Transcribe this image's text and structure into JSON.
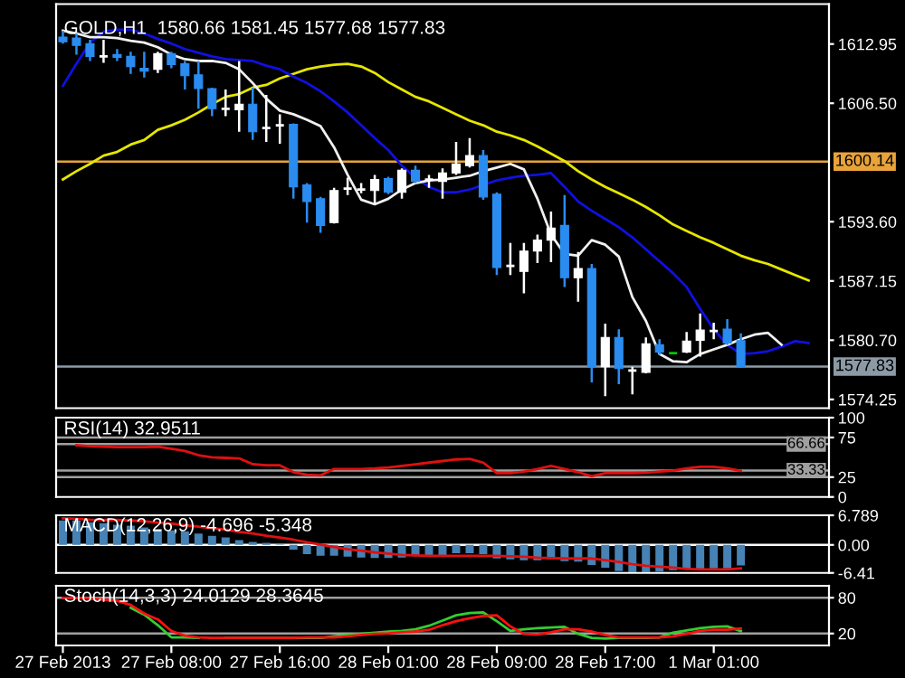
{
  "chart_data": [
    {
      "type": "candlestick",
      "title": "GOLD,H1  1580.66 1581.45 1577.68 1577.83",
      "ohlc": [
        [
          1613.7,
          1614.4,
          1613.0,
          1613.2
        ],
        [
          1613.6,
          1614.1,
          1611.8,
          1612.8
        ],
        [
          1613.0,
          1613.4,
          1611.1,
          1611.6
        ],
        [
          1611.6,
          1613.4,
          1610.9,
          1611.6
        ],
        [
          1611.8,
          1612.4,
          1611.1,
          1611.5
        ],
        [
          1611.6,
          1612.1,
          1609.7,
          1610.5
        ],
        [
          1610.3,
          1612.1,
          1609.3,
          1610.0
        ],
        [
          1610.2,
          1612.1,
          1609.8,
          1611.9
        ],
        [
          1611.9,
          1612.1,
          1610.3,
          1610.7
        ],
        [
          1610.8,
          1611.1,
          1608.0,
          1609.5
        ],
        [
          1609.6,
          1611.1,
          1605.9,
          1608.1
        ],
        [
          1608.1,
          1608.2,
          1605.1,
          1605.9
        ],
        [
          1605.9,
          1608.0,
          1605.1,
          1605.9
        ],
        [
          1605.8,
          1611.1,
          1603.4,
          1606.4
        ],
        [
          1606.4,
          1608.2,
          1602.5,
          1603.4
        ],
        [
          1603.8,
          1607.4,
          1602.3,
          1603.8
        ],
        [
          1604.1,
          1605.3,
          1602.1,
          1604.1
        ],
        [
          1604.2,
          1604.3,
          1596.1,
          1597.4
        ],
        [
          1597.6,
          1597.8,
          1593.5,
          1595.8
        ],
        [
          1596.1,
          1596.3,
          1592.4,
          1593.2
        ],
        [
          1593.5,
          1597.3,
          1593.4,
          1597.0
        ],
        [
          1597.2,
          1598.4,
          1596.5,
          1597.2
        ],
        [
          1597.1,
          1597.8,
          1596.7,
          1597.1
        ],
        [
          1597.0,
          1598.7,
          1595.6,
          1598.2
        ],
        [
          1598.3,
          1598.5,
          1596.6,
          1596.8
        ],
        [
          1596.8,
          1599.4,
          1596.1,
          1599.2
        ],
        [
          1599.2,
          1599.7,
          1597.8,
          1598.0
        ],
        [
          1598.2,
          1598.7,
          1597.3,
          1598.2
        ],
        [
          1598.0,
          1599.4,
          1596.1,
          1598.9
        ],
        [
          1598.9,
          1602.3,
          1598.7,
          1599.9
        ],
        [
          1599.7,
          1602.7,
          1599.5,
          1600.8
        ],
        [
          1600.8,
          1601.4,
          1596.0,
          1596.3
        ],
        [
          1596.6,
          1596.8,
          1587.8,
          1588.6
        ],
        [
          1588.8,
          1591.3,
          1587.8,
          1588.8
        ],
        [
          1588.2,
          1591.3,
          1585.8,
          1590.4
        ],
        [
          1590.4,
          1592.2,
          1589.1,
          1591.6
        ],
        [
          1591.6,
          1594.7,
          1589.2,
          1592.9
        ],
        [
          1593.2,
          1596.5,
          1586.5,
          1587.5
        ],
        [
          1587.5,
          1590.3,
          1584.9,
          1588.5
        ],
        [
          1588.5,
          1589.0,
          1576.1,
          1577.8
        ],
        [
          1577.8,
          1582.5,
          1574.6,
          1581.0
        ],
        [
          1581.0,
          1581.9,
          1575.9,
          1577.6
        ],
        [
          1577.4,
          1577.8,
          1574.8,
          1577.4
        ],
        [
          1577.2,
          1581.0,
          1577.1,
          1580.3
        ],
        [
          1580.2,
          1580.8,
          1579.1,
          1579.4
        ],
        [
          1579.3,
          1579.3,
          1579.3,
          1579.3
        ],
        [
          1579.4,
          1581.6,
          1579.3,
          1580.6
        ],
        [
          1580.7,
          1583.6,
          1578.9,
          1581.8
        ],
        [
          1581.7,
          1582.6,
          1580.8,
          1581.7
        ],
        [
          1581.9,
          1583.0,
          1580.2,
          1580.4
        ],
        [
          1580.66,
          1581.45,
          1577.68,
          1577.83
        ],
        null,
        null,
        null,
        null,
        null,
        null
      ],
      "colors": [
        "#2a8cf0",
        "#2a8cf0",
        "#2a8cf0",
        "#ffffff",
        "#2a8cf0",
        "#2a8cf0",
        "#2a8cf0",
        "#ffffff",
        "#2a8cf0",
        "#2a8cf0",
        "#2a8cf0",
        "#2a8cf0",
        "#ffffff",
        "#ffffff",
        "#2a8cf0",
        "#ffffff",
        "#ffffff",
        "#2a8cf0",
        "#2a8cf0",
        "#2a8cf0",
        "#ffffff",
        "#ffffff",
        "#ffffff",
        "#ffffff",
        "#2a8cf0",
        "#ffffff",
        "#2a8cf0",
        "#ffffff",
        "#ffffff",
        "#ffffff",
        "#ffffff",
        "#2a8cf0",
        "#2a8cf0",
        "#ffffff",
        "#ffffff",
        "#ffffff",
        "#ffffff",
        "#2a8cf0",
        "#ffffff",
        "#2a8cf0",
        "#ffffff",
        "#2a8cf0",
        "#ffffff",
        "#ffffff",
        "#2a8cf0",
        "#00c800",
        "#ffffff",
        "#ffffff",
        "#ffffff",
        "#2a8cf0",
        "#2a8cf0",
        null,
        null,
        null,
        null,
        null,
        null
      ],
      "series": [
        {
          "type": "line",
          "color": "#e6e600",
          "values": [
            1598.2,
            1599.1,
            1599.9,
            1600.8,
            1601.2,
            1602.0,
            1602.5,
            1603.6,
            1604.1,
            1604.7,
            1605.5,
            1606.4,
            1607.2,
            1607.5,
            1608.2,
            1608.5,
            1609.2,
            1609.7,
            1610.2,
            1610.5,
            1610.7,
            1610.8,
            1610.5,
            1609.8,
            1608.8,
            1608.0,
            1607.2,
            1606.7,
            1606.0,
            1605.3,
            1604.6,
            1604.1,
            1603.4,
            1603.0,
            1602.5,
            1601.8,
            1601.0,
            1600.2,
            1599.1,
            1598.2,
            1597.4,
            1596.7,
            1596.0,
            1595.2,
            1594.3,
            1593.3,
            1592.6,
            1591.9,
            1591.3,
            1590.6,
            1589.9,
            1589.4,
            1589.0,
            1588.4,
            1587.8,
            1587.2,
            null
          ]
        },
        {
          "type": "line",
          "color": "#1010e0",
          "values": [
            1608.4,
            1610.8,
            1613.1,
            1614.3,
            1614.5,
            1614.5,
            1614.1,
            1613.5,
            1613.0,
            1612.4,
            1612.0,
            1611.6,
            1611.3,
            1611.2,
            1611.1,
            1610.6,
            1610.2,
            1609.4,
            1608.7,
            1607.8,
            1606.7,
            1605.5,
            1604.1,
            1602.7,
            1601.4,
            1599.7,
            1598.4,
            1597.4,
            1596.8,
            1596.8,
            1597.1,
            1597.6,
            1598.1,
            1598.4,
            1598.6,
            1598.7,
            1598.9,
            1597.4,
            1595.8,
            1594.8,
            1593.9,
            1593.0,
            1591.9,
            1590.6,
            1589.3,
            1588.0,
            1586.5,
            1584.1,
            1581.9,
            1580.2,
            1579.2,
            1579.3,
            1579.5,
            1580.0,
            1580.6,
            1580.4,
            null
          ]
        },
        {
          "type": "line",
          "color": "#f0f0f0",
          "values": [
            1614.4,
            1614.1,
            1613.7,
            1613.7,
            1613.6,
            1613.3,
            1613.1,
            1612.6,
            1611.8,
            1611.3,
            1611.1,
            1611.1,
            1610.9,
            1610.2,
            1608.7,
            1607.0,
            1605.7,
            1605.3,
            1604.7,
            1604.0,
            1601.7,
            1598.7,
            1596.0,
            1595.5,
            1596.1,
            1597.1,
            1597.8,
            1598.1,
            1598.2,
            1598.4,
            1598.6,
            1599.1,
            1599.5,
            1599.9,
            1599.3,
            1596.1,
            1592.2,
            1590.1,
            1589.9,
            1591.6,
            1591.1,
            1589.8,
            1585.4,
            1582.8,
            1579.2,
            1578.4,
            1578.3,
            1579.2,
            1579.7,
            1580.2,
            1580.8,
            1581.3,
            1581.5,
            1580.2,
            null,
            null,
            null
          ]
        }
      ],
      "ylim": [
        1573.3,
        1617.3
      ],
      "yticks": [
        1612.95,
        {
          "value": 1606.5,
          "label": "1606.50"
        },
        {
          "value": 1593.6,
          "label": "1593.60"
        },
        1587.15,
        {
          "value": 1580.7,
          "label": "1580.70"
        },
        1574.25
      ],
      "ref_lines": [
        {
          "axis": "y",
          "value": 1600.14,
          "label": "1600.14",
          "color": "#e8a33a"
        },
        {
          "axis": "y",
          "value": 1577.83,
          "label": "1577.83",
          "color": "#8c9aa6"
        }
      ],
      "tick_labels": "y"
    },
    {
      "type": "line",
      "title": "RSI(14) 32.9511",
      "series": [
        {
          "color": "#e01010",
          "values": [
            null,
            65.3,
            64.0,
            63.3,
            62.7,
            62.7,
            62.7,
            63.3,
            60.7,
            58.0,
            52.7,
            50.0,
            49.3,
            48.7,
            41.3,
            40.0,
            40.0,
            31.3,
            28.0,
            27.3,
            35.3,
            35.3,
            35.3,
            36.0,
            37.3,
            39.3,
            41.3,
            43.3,
            45.3,
            47.3,
            48.0,
            43.3,
            30.0,
            30.0,
            32.0,
            35.3,
            39.3,
            35.3,
            31.3,
            26.0,
            30.0,
            30.0,
            30.0,
            30.7,
            32.0,
            33.3,
            36.0,
            38.0,
            38.0,
            36.0,
            33.0,
            null,
            null,
            null,
            null,
            null,
            null
          ]
        }
      ],
      "ylim": [
        0,
        100
      ],
      "yticks": [
        100,
        75,
        25,
        0
      ],
      "ref_lines": [
        {
          "axis": "y",
          "value": 75,
          "color": "#a0a0a0"
        },
        {
          "axis": "y",
          "value": 66.66,
          "label": "66.66",
          "color": "#a0a0a0"
        },
        {
          "axis": "y",
          "value": 33.33,
          "label": "33.33",
          "color": "#a0a0a0"
        },
        {
          "axis": "y",
          "value": 25,
          "color": "#a0a0a0"
        }
      ],
      "tick_labels": "y"
    },
    {
      "type": "line",
      "title": "MACD(12,26,9) -4.696 -5.348",
      "series": [
        {
          "type": "bar",
          "color": "#4682b4",
          "values": [
            5.6,
            5.6,
            5.2,
            5.0,
            4.6,
            4.4,
            4.0,
            3.7,
            3.3,
            3.1,
            2.6,
            2.1,
            1.7,
            1.1,
            0.7,
            0.5,
            0.1,
            -1.1,
            -2.1,
            -2.5,
            -2.5,
            -2.7,
            -2.9,
            -3.0,
            -3.0,
            -2.9,
            -2.6,
            -2.4,
            -2.3,
            -1.9,
            -1.9,
            -2.1,
            -3.1,
            -3.3,
            -3.5,
            -3.5,
            -3.3,
            -3.7,
            -3.8,
            -4.6,
            -5.2,
            -6.0,
            -6.2,
            -6.2,
            -6.1,
            -5.8,
            -5.6,
            -5.5,
            -5.4,
            -5.4,
            -4.7,
            null,
            null,
            null,
            null,
            null,
            null
          ]
        },
        {
          "type": "line",
          "color": "#e01010",
          "values": [
            6.1,
            6.0,
            5.8,
            5.7,
            5.7,
            5.6,
            5.4,
            5.1,
            4.9,
            4.5,
            4.2,
            3.8,
            3.5,
            3.0,
            2.6,
            2.1,
            1.7,
            1.2,
            0.6,
            0.1,
            -0.5,
            -1.0,
            -1.3,
            -1.7,
            -2.0,
            -2.3,
            -2.4,
            -2.5,
            -2.5,
            -2.5,
            -2.5,
            -2.5,
            -2.5,
            -2.6,
            -2.7,
            -2.9,
            -3.0,
            -3.1,
            -3.1,
            -3.1,
            -3.5,
            -3.9,
            -4.4,
            -4.8,
            -5.0,
            -5.2,
            -5.5,
            -5.6,
            -5.6,
            -5.6,
            -5.35,
            null,
            null,
            null,
            null,
            null,
            null
          ]
        }
      ],
      "ylim": [
        -6.41,
        6.789
      ],
      "yticks": [
        6.789,
        {
          "value": 0,
          "label": "0.00"
        },
        -6.41
      ],
      "ref_lines": [
        {
          "axis": "y",
          "value": 0,
          "color": "#ffffff"
        }
      ],
      "tick_labels": "y"
    },
    {
      "type": "line",
      "title": "Stoch(14,3,3) 24.0129 28.3645",
      "categories": [
        "27 Feb 2013",
        null,
        null,
        null,
        null,
        null,
        null,
        null,
        "27 Feb 08:00",
        null,
        null,
        null,
        null,
        null,
        null,
        null,
        "27 Feb 16:00",
        null,
        null,
        null,
        null,
        null,
        null,
        null,
        "28 Feb 01:00",
        null,
        null,
        null,
        null,
        null,
        null,
        null,
        "28 Feb 09:00",
        null,
        null,
        null,
        null,
        null,
        null,
        null,
        "28 Feb 17:00",
        null,
        null,
        null,
        null,
        null,
        null,
        null,
        "1 Mar 01:00",
        null,
        null,
        null,
        null,
        null,
        null,
        null,
        null
      ],
      "series": [
        {
          "color": "#32cd32",
          "values": [
            null,
            null,
            null,
            null,
            null,
            63.1,
            51.5,
            34.0,
            13.6,
            13.6,
            12.6,
            null,
            12.6,
            12.6,
            12.6,
            12.6,
            12.6,
            12.6,
            12.6,
            12.6,
            15.5,
            17.5,
            19.4,
            21.4,
            23.3,
            24.3,
            27.2,
            33.0,
            41.7,
            50.5,
            54.4,
            55.3,
            40.8,
            24.3,
            27.2,
            29.1,
            30.1,
            31.1,
            19.4,
            12.6,
            11.7,
            12.6,
            12.6,
            12.6,
            13.6,
            21.4,
            25.2,
            29.1,
            31.1,
            32.0,
            24.0,
            null,
            null,
            null,
            null,
            null,
            null
          ]
        },
        {
          "color": "#ff1010",
          "values": [
            79.6,
            79.6,
            78.6,
            76.7,
            74.8,
            68.0,
            53.4,
            43.7,
            24.3,
            16.5,
            13.6,
            12.6,
            12.6,
            12.6,
            12.6,
            12.6,
            12.6,
            12.6,
            13.6,
            13.6,
            13.6,
            15.5,
            17.5,
            19.4,
            20.4,
            22.3,
            23.3,
            26.2,
            34.0,
            40.8,
            45.6,
            49.5,
            50.5,
            32.0,
            19.4,
            18.4,
            22.3,
            27.2,
            27.2,
            23.3,
            17.5,
            13.6,
            13.6,
            13.6,
            13.6,
            15.5,
            19.4,
            24.3,
            26.2,
            26.2,
            28.4,
            null,
            null,
            null,
            null,
            null,
            null
          ]
        }
      ],
      "ylim": [
        0,
        100
      ],
      "yticks": [
        80,
        20
      ],
      "ref_lines": [
        {
          "axis": "y",
          "value": 80,
          "color": "#a0a0a0"
        },
        {
          "axis": "y",
          "value": 20,
          "color": "#a0a0a0"
        }
      ]
    }
  ]
}
